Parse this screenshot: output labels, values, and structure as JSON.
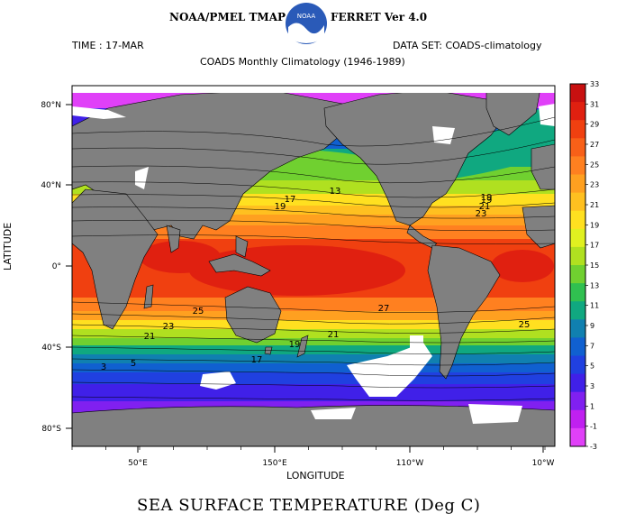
{
  "header": {
    "banner_left": "NOAA/PMEL TMAP",
    "banner_right": "FERRET Ver 4.0",
    "logo_text": "NOAA",
    "time": "TIME : 17-MAR",
    "dataset": "DATA SET: COADS-climatology",
    "subtitle": "COADS Monthly Climatology (1946-1989)"
  },
  "chart_data": {
    "type": "heatmap",
    "title": "SEA SURFACE TEMPERATURE (Deg C)",
    "xlabel": "LONGITUDE",
    "ylabel": "LATITUDE",
    "x_ticks": [
      "50°E",
      "150°E",
      "110°W",
      "10°W"
    ],
    "y_ticks": [
      "80°N",
      "40°N",
      "0°",
      "40°S",
      "80°S"
    ],
    "colorbar": {
      "min": -3,
      "max": 33,
      "labels": [
        33,
        31,
        29,
        27,
        25,
        23,
        21,
        19,
        17,
        15,
        13,
        11,
        9,
        7,
        5,
        3,
        1,
        -1,
        -3
      ],
      "colors": [
        "#c81010",
        "#e02010",
        "#f04010",
        "#f86018",
        "#ff8020",
        "#ffa020",
        "#ffc020",
        "#ffe020",
        "#e0f020",
        "#b0e020",
        "#70d030",
        "#30c050",
        "#10a880",
        "#1080b0",
        "#1060d0",
        "#2040e0",
        "#4020e8",
        "#8020f0",
        "#c020f0",
        "#e040f8"
      ]
    },
    "contour_labels": [
      "13",
      "17",
      "19",
      "19",
      "21",
      "23",
      "25",
      "27",
      "23",
      "21",
      "19",
      "25",
      "19",
      "21",
      "17",
      "3",
      "5"
    ],
    "grid": false
  }
}
